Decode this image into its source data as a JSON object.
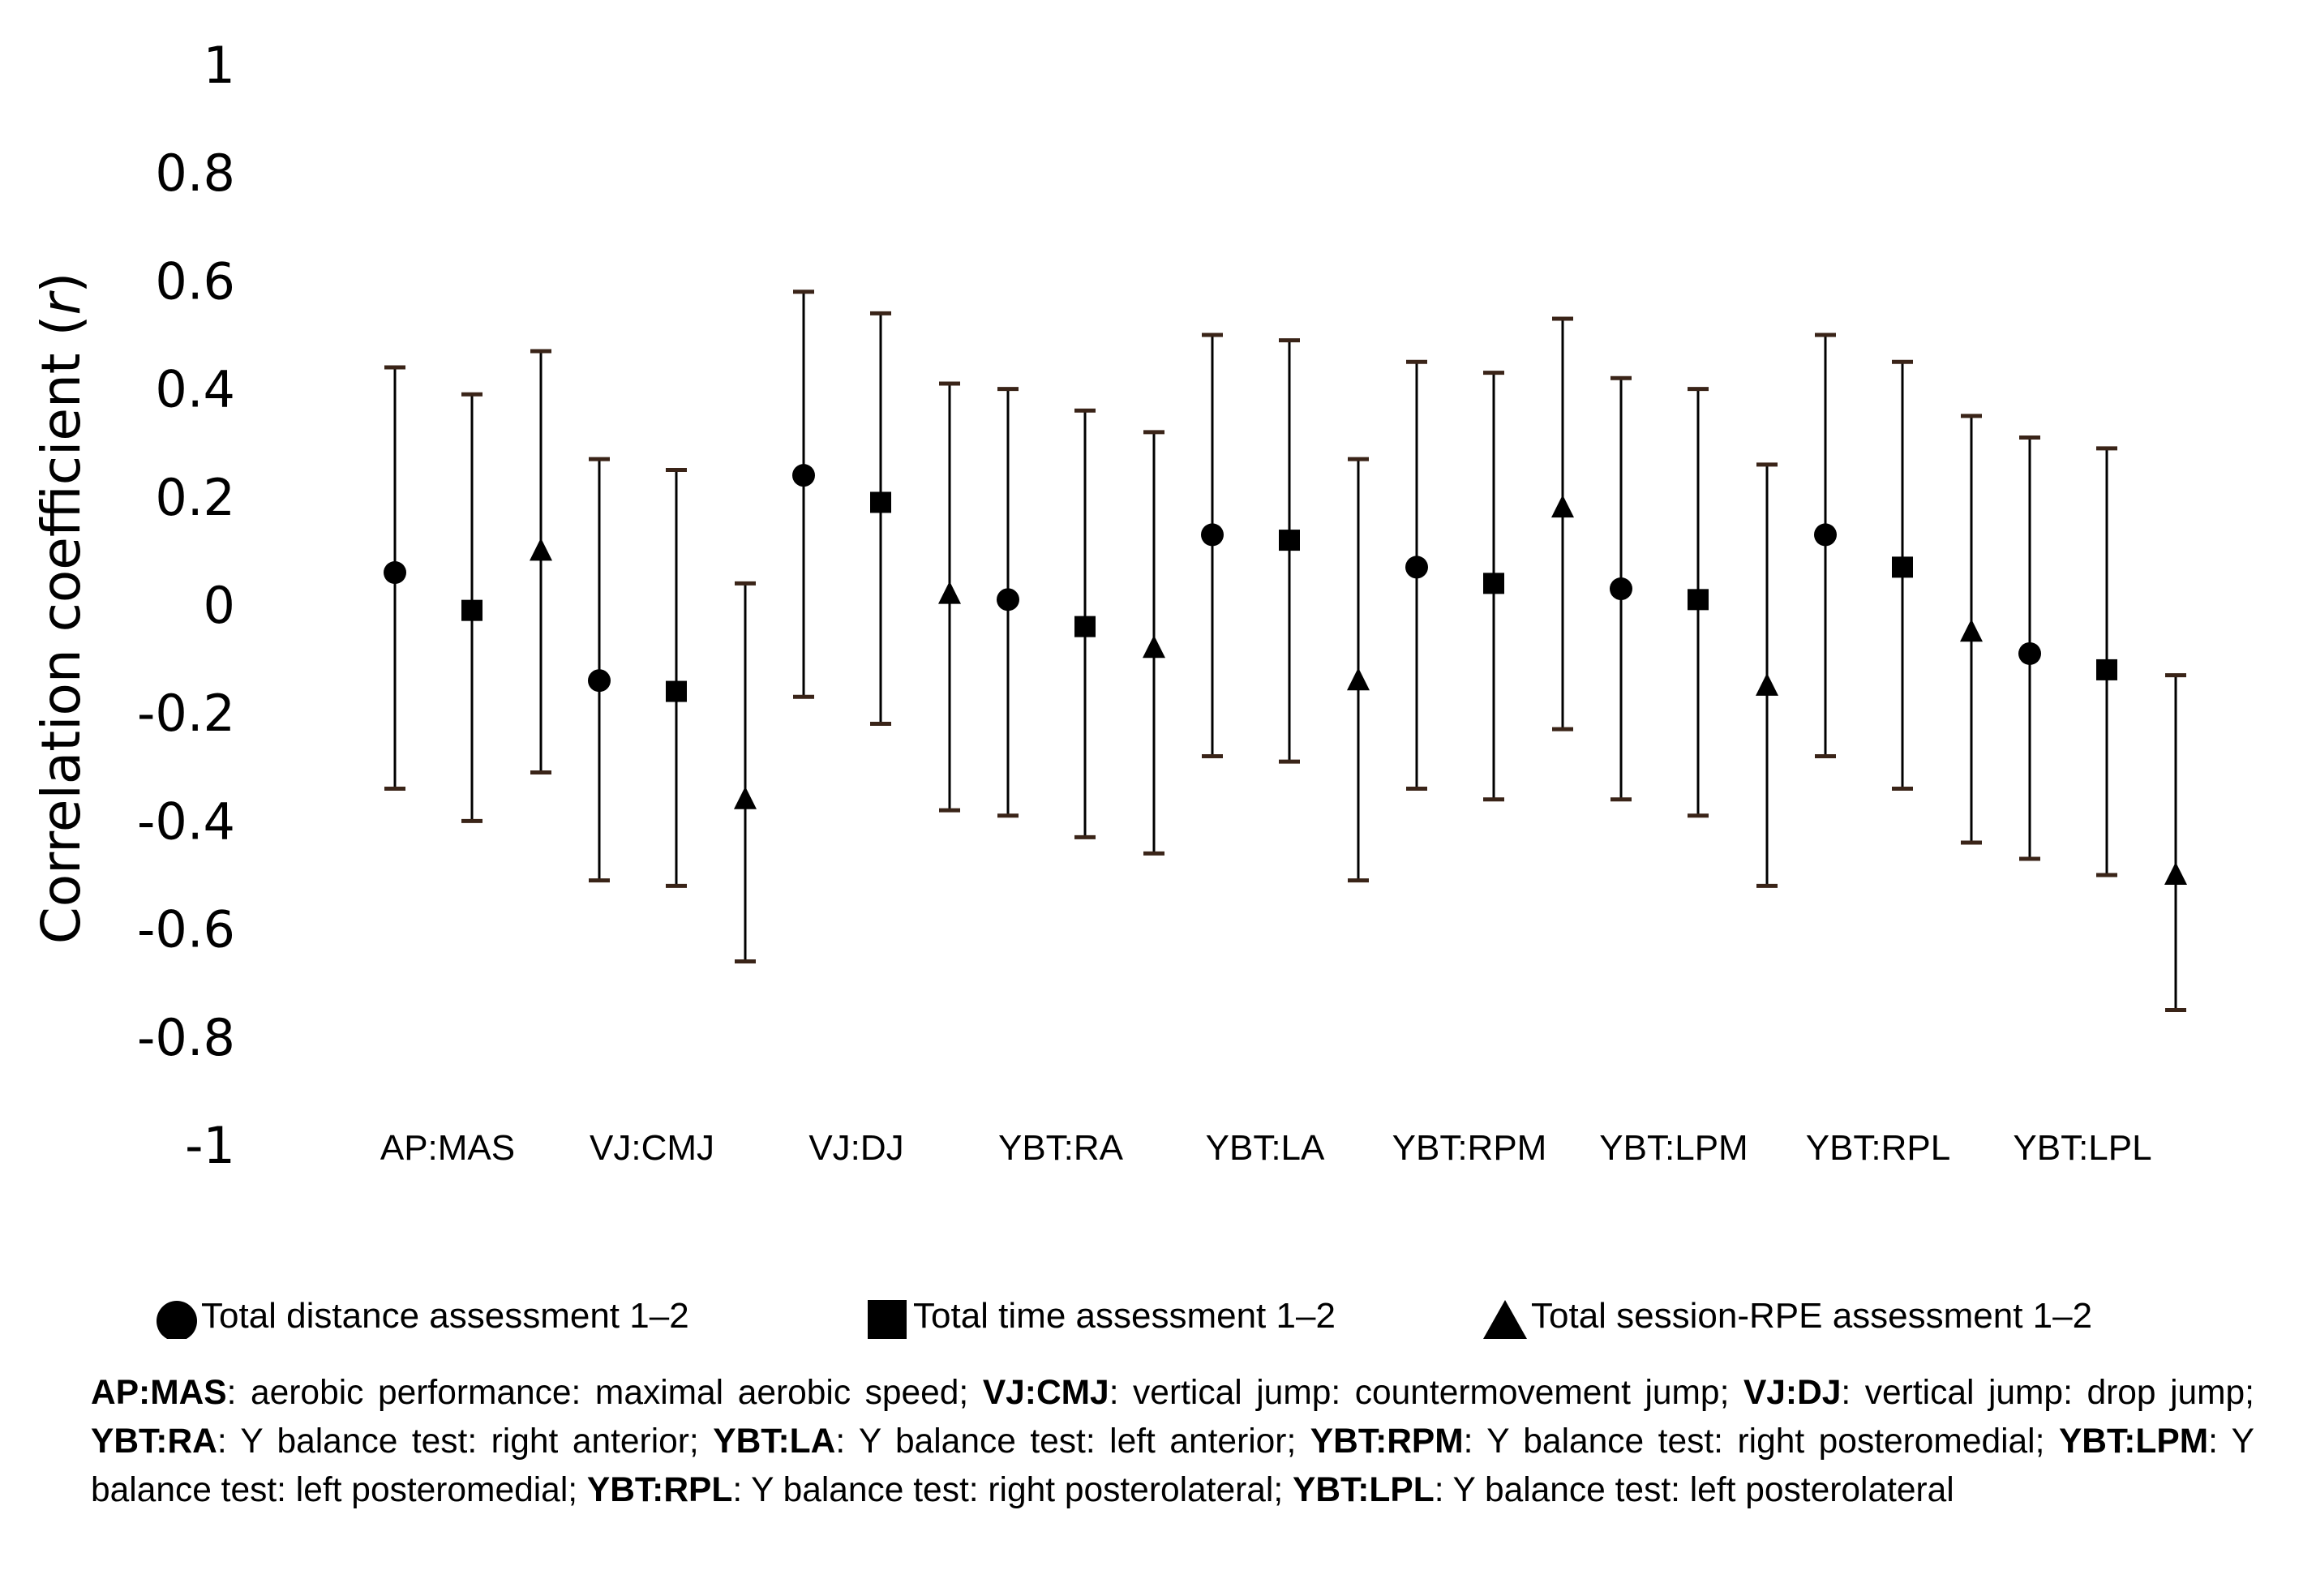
{
  "chart_data": {
    "type": "scatter",
    "subtype": "point-estimate-with-error-bars",
    "ylabel": "Correlation coefficient (r)",
    "xlabel": "",
    "ylim": [
      -1,
      1
    ],
    "y_ticks": [
      "1",
      "0.8",
      "0.6",
      "0.4",
      "0.2",
      "0",
      "-0.2",
      "-0.4",
      "-0.6",
      "-0.8",
      "-1"
    ],
    "y_tick_values": [
      1,
      0.8,
      0.6,
      0.4,
      0.2,
      0,
      -0.2,
      -0.4,
      -0.6,
      -0.8,
      -1
    ],
    "categories": [
      "AP:MAS",
      "VJ:CMJ",
      "VJ:DJ",
      "YBT:RA",
      "YBT:LA",
      "YBT:RPM",
      "YBT:LPM",
      "YBT:RPL",
      "YBT:LPL"
    ],
    "grid": false,
    "series": [
      {
        "name": "Total distance assessment 1–2",
        "marker": "circle",
        "values": [
          0.06,
          -0.14,
          0.24,
          0.01,
          0.13,
          0.07,
          0.03,
          0.13,
          -0.09
        ],
        "lower": [
          -0.34,
          -0.51,
          -0.17,
          -0.39,
          -0.28,
          -0.34,
          -0.36,
          -0.28,
          -0.47
        ],
        "upper": [
          0.44,
          0.27,
          0.58,
          0.4,
          0.5,
          0.45,
          0.42,
          0.5,
          0.31
        ]
      },
      {
        "name": "Total time assessment 1–2",
        "marker": "square",
        "values": [
          -0.01,
          -0.16,
          0.19,
          -0.04,
          0.12,
          0.04,
          0.01,
          0.07,
          -0.12
        ],
        "lower": [
          -0.4,
          -0.52,
          -0.22,
          -0.43,
          -0.29,
          -0.36,
          -0.39,
          -0.34,
          -0.5
        ],
        "upper": [
          0.39,
          0.25,
          0.54,
          0.36,
          0.49,
          0.43,
          0.4,
          0.45,
          0.29
        ]
      },
      {
        "name": "Total session-RPE assessment 1–2",
        "marker": "triangle",
        "values": [
          0.1,
          -0.36,
          0.02,
          -0.08,
          -0.14,
          0.18,
          -0.15,
          -0.05,
          -0.5
        ],
        "lower": [
          -0.31,
          -0.66,
          -0.38,
          -0.46,
          -0.51,
          -0.23,
          -0.52,
          -0.44,
          -0.75
        ],
        "upper": [
          0.47,
          0.04,
          0.41,
          0.32,
          0.27,
          0.53,
          0.26,
          0.35,
          -0.13
        ]
      }
    ],
    "colors": {
      "marker": "#000000",
      "errorbar": "#000000",
      "cap": "#3a2418"
    }
  },
  "legend": {
    "items": [
      {
        "label": "Total distance assessment 1–2",
        "marker": "circle"
      },
      {
        "label": "Total time assessment 1–2",
        "marker": "square"
      },
      {
        "label": "Total session-RPE assessment 1–2",
        "marker": "triangle"
      }
    ]
  },
  "footnote": [
    {
      "abbr": "AP:MAS",
      "desc": ": aerobic performance: maximal aerobic speed; "
    },
    {
      "abbr": "VJ:CMJ",
      "desc": ": vertical jump: countermovement jump; "
    },
    {
      "abbr": "VJ:DJ",
      "desc": ": vertical jump: drop jump; "
    },
    {
      "abbr": "YBT:RA",
      "desc": ": Y balance test: right anterior; "
    },
    {
      "abbr": "YBT:LA",
      "desc": ": Y balance test: left anterior; "
    },
    {
      "abbr": "YBT:RPM",
      "desc": ": Y balance test: right posteromedial; "
    },
    {
      "abbr": "YBT:LPM",
      "desc": ": Y balance test: left posteromedial; "
    },
    {
      "abbr": "YBT:RPL",
      "desc": ": Y balance test: right posterolateral; "
    },
    {
      "abbr": "YBT:LPL",
      "desc": ": Y balance test: left posterolateral"
    }
  ]
}
